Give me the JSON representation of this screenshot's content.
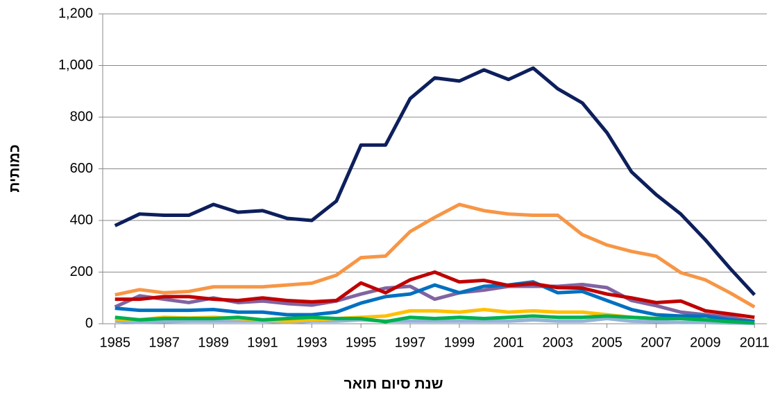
{
  "chart_data": {
    "type": "line",
    "x_label": "שנת סיום תואר",
    "y_label": "כמותית",
    "x": [
      1985,
      1986,
      1987,
      1988,
      1989,
      1990,
      1991,
      1992,
      1993,
      1994,
      1995,
      1996,
      1997,
      1998,
      1999,
      2000,
      2001,
      2002,
      2003,
      2004,
      2005,
      2006,
      2007,
      2008,
      2009,
      2010,
      2011
    ],
    "xlim": [
      1984.5,
      2011.5
    ],
    "xticks": [
      1985,
      1987,
      1989,
      1991,
      1993,
      1995,
      1997,
      1999,
      2001,
      2003,
      2005,
      2007,
      2009,
      2011
    ],
    "ylim": [
      0,
      1200
    ],
    "yticks": [
      0,
      200,
      400,
      600,
      800,
      {
        "value": 1000,
        "label": "1,000"
      },
      {
        "value": 1200,
        "label": "1,200"
      }
    ],
    "grid": true,
    "series": [
      {
        "color": "#95b3d7",
        "values": [
          10,
          5,
          8,
          10,
          10,
          10,
          10,
          5,
          10,
          10,
          15,
          10,
          10,
          10,
          10,
          10,
          10,
          15,
          10,
          10,
          20,
          10,
          8,
          5,
          5,
          3,
          2
        ]
      },
      {
        "color": "#ffc000",
        "values": [
          18,
          15,
          25,
          22,
          25,
          20,
          15,
          10,
          15,
          20,
          25,
          30,
          50,
          50,
          45,
          55,
          45,
          50,
          45,
          45,
          35,
          25,
          20,
          30,
          30,
          20,
          10
        ]
      },
      {
        "color": "#8064a2",
        "values": [
          65,
          108,
          95,
          82,
          100,
          82,
          88,
          78,
          72,
          88,
          115,
          138,
          145,
          95,
          120,
          130,
          145,
          145,
          145,
          152,
          140,
          90,
          70,
          45,
          35,
          25,
          8
        ]
      },
      {
        "color": "#0070c0",
        "values": [
          60,
          52,
          52,
          52,
          55,
          45,
          45,
          35,
          35,
          45,
          80,
          105,
          115,
          150,
          120,
          145,
          150,
          162,
          120,
          125,
          90,
          55,
          35,
          30,
          30,
          15,
          8
        ]
      },
      {
        "color": "#c00000",
        "values": [
          95,
          95,
          105,
          105,
          95,
          90,
          100,
          90,
          85,
          90,
          158,
          120,
          170,
          200,
          162,
          168,
          148,
          155,
          140,
          138,
          115,
          100,
          82,
          88,
          50,
          38,
          25
        ]
      },
      {
        "color": "#00b050",
        "values": [
          25,
          15,
          20,
          20,
          20,
          25,
          15,
          20,
          25,
          20,
          20,
          8,
          25,
          20,
          25,
          20,
          25,
          30,
          25,
          25,
          30,
          25,
          20,
          20,
          15,
          8,
          3
        ]
      },
      {
        "color": "#f79646",
        "values": [
          112,
          132,
          120,
          125,
          143,
          143,
          143,
          150,
          157,
          188,
          256,
          262,
          357,
          412,
          462,
          438,
          425,
          420,
          420,
          345,
          305,
          280,
          262,
          198,
          170,
          120,
          65
        ]
      },
      {
        "color": "#0d1f5c",
        "values": [
          380,
          425,
          420,
          420,
          462,
          432,
          438,
          408,
          400,
          475,
          692,
          692,
          872,
          952,
          940,
          983,
          946,
          990,
          910,
          855,
          740,
          588,
          500,
          425,
          325,
          215,
          112
        ]
      }
    ]
  }
}
